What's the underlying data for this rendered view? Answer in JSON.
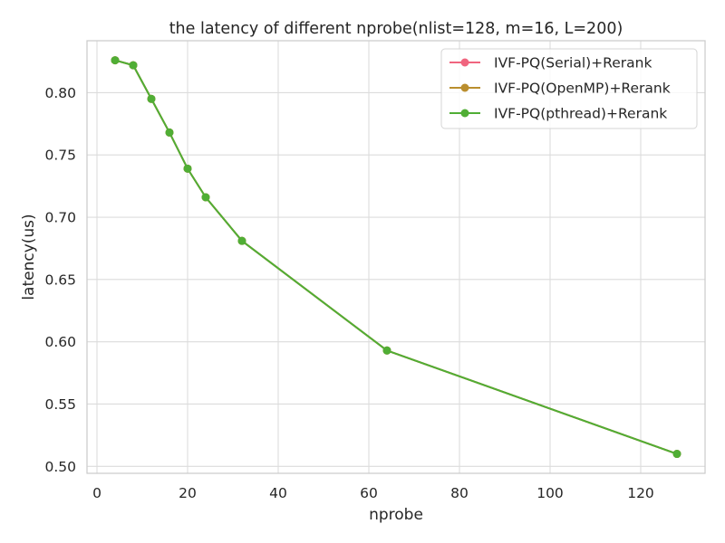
{
  "chart_data": {
    "type": "line",
    "title": "the latency of different nprobe(nlist=128, m=16, L=200)",
    "xlabel": "nprobe",
    "ylabel": "latency(us)",
    "x": [
      4,
      8,
      12,
      16,
      20,
      24,
      32,
      64,
      128
    ],
    "xlim": [
      -2.2,
      134.2
    ],
    "ylim": [
      0.4944,
      0.8417
    ],
    "xticks": [
      0,
      20,
      40,
      60,
      80,
      100,
      120
    ],
    "yticks": [
      0.5,
      0.55,
      0.6,
      0.65,
      0.7,
      0.75,
      0.8
    ],
    "ytick_labels": [
      "0.50",
      "0.55",
      "0.60",
      "0.65",
      "0.70",
      "0.75",
      "0.80"
    ],
    "grid": true,
    "legend_position": "top-right",
    "series": [
      {
        "name": "IVF-PQ(Serial)+Rerank",
        "color": "#f0657f",
        "values": [
          0.826,
          0.822,
          0.795,
          0.768,
          0.739,
          0.716,
          0.681,
          0.593,
          0.51
        ]
      },
      {
        "name": "IVF-PQ(OpenMP)+Rerank",
        "color": "#ba8e2e",
        "values": [
          0.826,
          0.822,
          0.795,
          0.768,
          0.739,
          0.716,
          0.681,
          0.593,
          0.51
        ]
      },
      {
        "name": "IVF-PQ(pthread)+Rerank",
        "color": "#50ae35",
        "values": [
          0.826,
          0.822,
          0.795,
          0.768,
          0.739,
          0.716,
          0.681,
          0.593,
          0.51
        ]
      }
    ]
  }
}
